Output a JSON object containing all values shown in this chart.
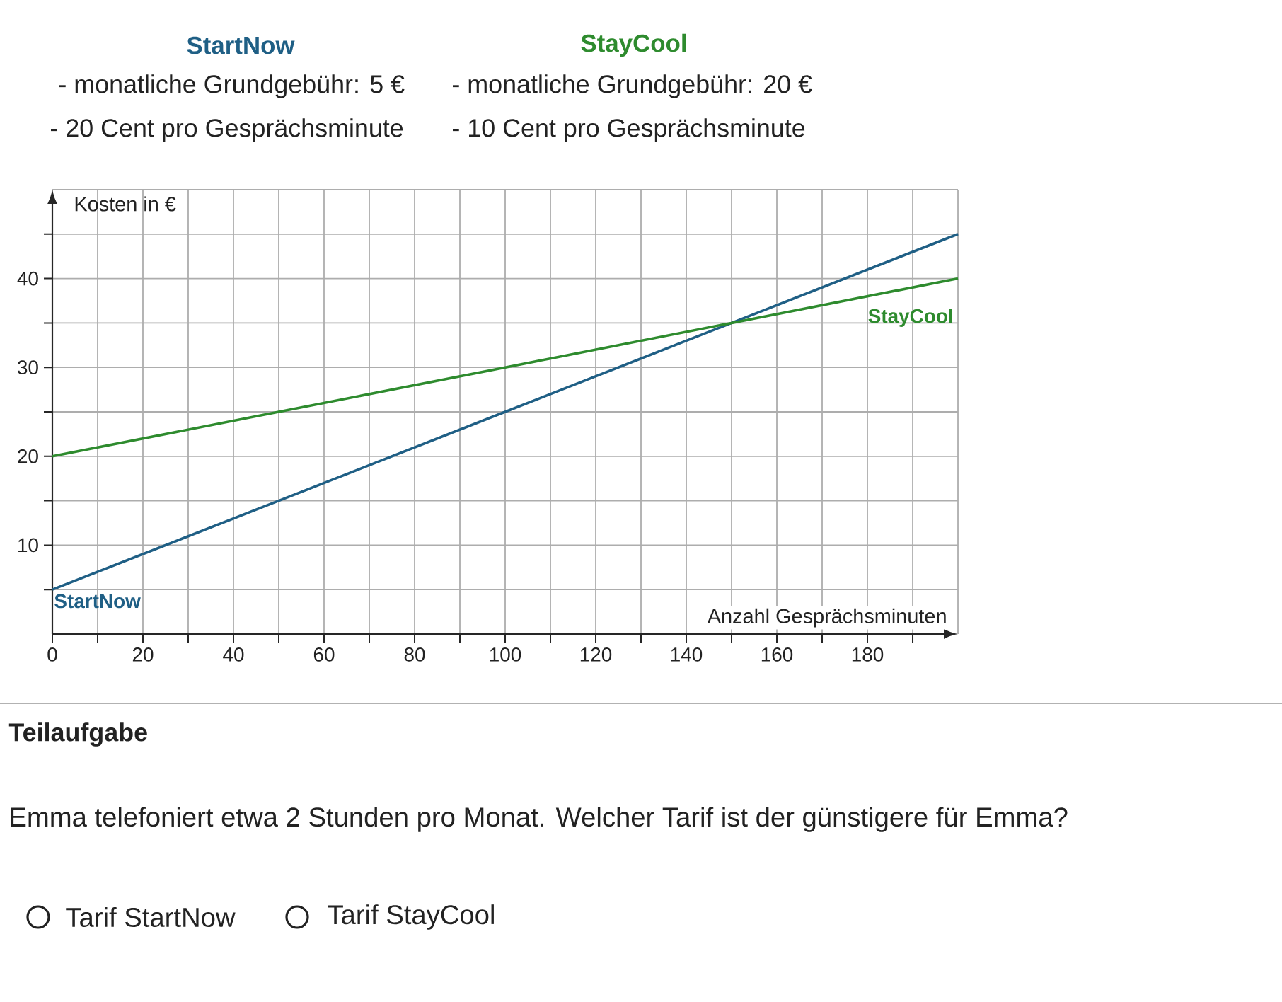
{
  "chart_data": {
    "type": "line",
    "annotations": [
      "StartNow",
      "- monatliche Grundgebühr: 5 €",
      "- 20 Cent pro Gesprächsminute",
      "StayCool",
      "- monatliche Grundgebühr: 20 €",
      "- 10 Cent pro Gesprächsminute",
      "Teilaufgabe",
      "Emma telefoniert etwa 2 Stunden pro Monat. Welcher Tarif ist der günstigere für Emma?",
      "Tarif StartNow",
      "Tarif StayCool"
    ],
    "xlabel": "Anzahl Gesprächsminuten",
    "ylabel": "Kosten in €",
    "x": [
      0,
      50,
      100,
      150,
      200
    ],
    "series": [
      {
        "name": "StartNow",
        "color": "#1f5f85",
        "values": [
          5,
          15,
          25,
          35,
          45
        ]
      },
      {
        "name": "StayCool",
        "color": "#2e8b2e",
        "values": [
          20,
          25,
          30,
          35,
          40
        ]
      }
    ],
    "xlim": [
      0,
      200
    ],
    "ylim": [
      0,
      50
    ],
    "xticks": [
      {
        "value": 0,
        "label": "0"
      },
      {
        "value": 10,
        "label": null
      },
      20,
      {
        "value": 30,
        "label": null
      },
      40,
      {
        "value": 50,
        "label": null
      },
      60,
      {
        "value": 70,
        "label": null
      },
      80,
      {
        "value": 90,
        "label": null
      },
      100,
      {
        "value": 110,
        "label": null
      },
      120,
      {
        "value": 130,
        "label": null
      },
      140,
      {
        "value": 150,
        "label": null
      },
      160,
      {
        "value": 170,
        "label": null
      },
      180,
      {
        "value": 190,
        "label": null
      }
    ],
    "yticks": [
      {
        "value": 5,
        "label": null
      },
      10,
      {
        "value": 15,
        "label": null
      },
      20,
      {
        "value": 25,
        "label": null
      },
      30,
      {
        "value": 35,
        "label": null
      },
      40,
      {
        "value": 45,
        "label": null
      }
    ],
    "grid": true
  }
}
